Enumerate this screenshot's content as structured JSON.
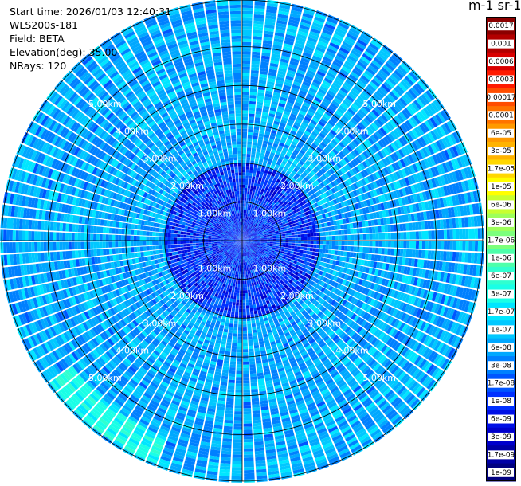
{
  "info": {
    "start_time": "Start time: 2026/01/03 12:40:31",
    "instrument": "WLS200s-181",
    "field": "Field: BETA",
    "elevation": "Elevation(deg): 35.00",
    "nrays": "NRays: 120"
  },
  "colorbar": {
    "unit_label": "m-1 sr-1",
    "ticks": [
      "0.0017",
      "0.001",
      "0.0006",
      "0.0003",
      "0.00017",
      "0.0001",
      "6e-05",
      "3e-05",
      "1.7e-05",
      "1e-05",
      "6e-06",
      "3e-06",
      "1.7e-06",
      "1e-06",
      "6e-07",
      "3e-07",
      "1.7e-07",
      "1e-07",
      "6e-08",
      "3e-08",
      "1.7e-08",
      "1e-08",
      "6e-09",
      "3e-09",
      "1.7e-09",
      "1e-09"
    ],
    "colors": [
      "#8b0000",
      "#b20000",
      "#d90000",
      "#ff1a00",
      "#ff4d00",
      "#ff7300",
      "#ff9900",
      "#ffb300",
      "#ffd700",
      "#ffff00",
      "#c8ff30",
      "#9dff5a",
      "#7cff7c",
      "#4dffaa",
      "#30ffd0",
      "#1affe6",
      "#00e6ff",
      "#00c8ff",
      "#00a8ff",
      "#0080ff",
      "#0055ff",
      "#0030ff",
      "#0010e6",
      "#0000cc",
      "#0000a6",
      "#000080"
    ]
  },
  "chart_data": {
    "type": "heatmap",
    "projection": "polar PPI scan",
    "field": "BETA",
    "elevation_deg": 35.0,
    "nrays": 120,
    "range_rings_km": [
      1,
      2,
      3,
      4,
      5
    ],
    "ring_labels": [
      "1.00km",
      "2.00km",
      "3.00km",
      "4.00km",
      "5.00km"
    ],
    "max_range_km": 6.2,
    "color_scale": "log",
    "color_range": [
      1e-09,
      0.0017
    ],
    "typical_inner_value": 1e-08,
    "typical_outer_value": 6e-08,
    "enhanced_band": {
      "azimuth_deg": [
        200,
        235
      ],
      "range_km": [
        5.4,
        6.1
      ],
      "value": 3e-07
    }
  }
}
